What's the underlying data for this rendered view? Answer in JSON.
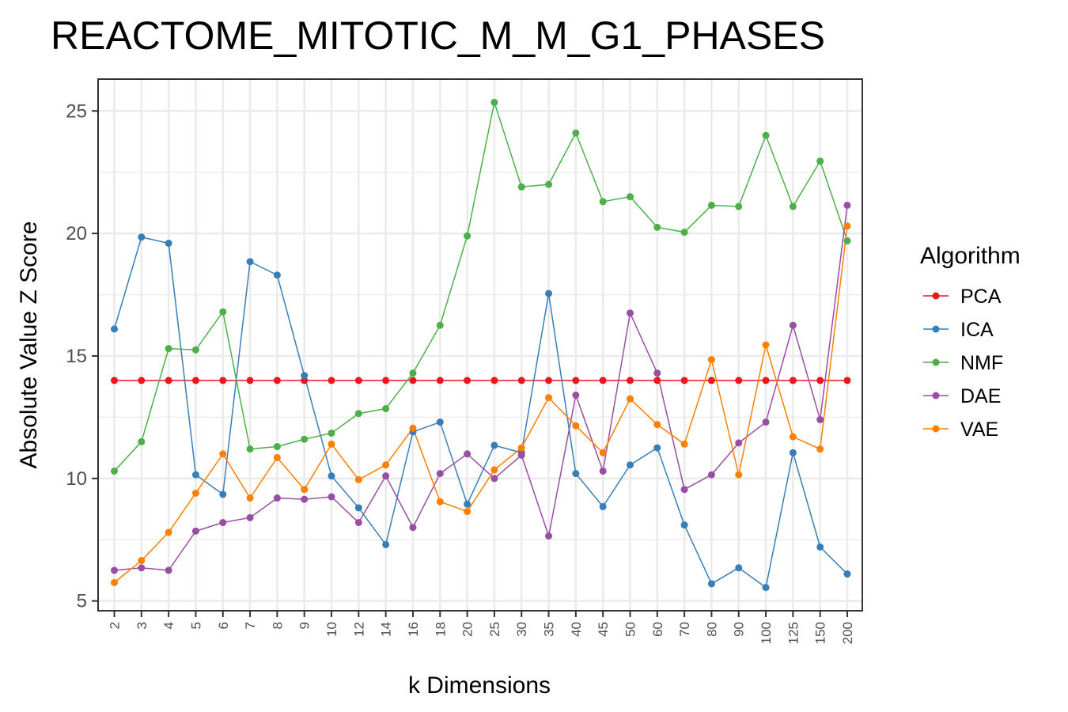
{
  "chart_data": {
    "type": "line",
    "title": "REACTOME_MITOTIC_M_M_G1_PHASES",
    "xlabel": "k Dimensions",
    "ylabel": "Absolute Value Z Score",
    "categories": [
      "2",
      "3",
      "4",
      "5",
      "6",
      "7",
      "8",
      "9",
      "10",
      "12",
      "14",
      "16",
      "18",
      "20",
      "25",
      "30",
      "35",
      "40",
      "45",
      "50",
      "60",
      "70",
      "80",
      "90",
      "100",
      "125",
      "150",
      "200"
    ],
    "yticks": [
      5,
      10,
      15,
      20,
      25
    ],
    "ylim": [
      4.6,
      26.3
    ],
    "grid": true,
    "legend": {
      "title": "Algorithm",
      "position": "right"
    },
    "series": [
      {
        "name": "PCA",
        "color": "#e41a1c",
        "values": [
          14,
          14,
          14,
          14,
          14,
          14,
          14,
          14,
          14,
          14,
          14,
          14,
          14,
          14,
          14,
          14,
          14,
          14,
          14,
          14,
          14,
          14,
          14,
          14,
          14,
          14,
          14,
          14
        ]
      },
      {
        "name": "ICA",
        "color": "#377eb8",
        "values": [
          16.1,
          19.85,
          19.6,
          10.15,
          9.35,
          18.85,
          18.3,
          14.2,
          10.1,
          8.8,
          7.3,
          11.9,
          12.3,
          8.95,
          11.35,
          11.05,
          17.55,
          10.2,
          8.85,
          10.55,
          11.25,
          8.1,
          5.7,
          6.35,
          5.55,
          11.05,
          7.2,
          6.1
        ]
      },
      {
        "name": "NMF",
        "color": "#4daf4a",
        "values": [
          10.3,
          11.5,
          15.3,
          15.25,
          16.8,
          11.2,
          11.3,
          11.6,
          11.85,
          12.65,
          12.85,
          14.3,
          16.25,
          19.9,
          25.35,
          21.9,
          22.0,
          24.1,
          21.3,
          21.5,
          20.25,
          20.05,
          21.15,
          21.1,
          24.0,
          21.1,
          22.95,
          19.7
        ]
      },
      {
        "name": "DAE",
        "color": "#984ea3",
        "values": [
          6.25,
          6.35,
          6.25,
          7.85,
          8.2,
          8.4,
          9.2,
          9.15,
          9.25,
          8.2,
          10.1,
          8.0,
          10.2,
          11.0,
          10.0,
          10.95,
          7.65,
          13.4,
          10.3,
          16.75,
          14.3,
          9.55,
          10.15,
          11.45,
          12.3,
          16.25,
          12.4,
          21.15
        ]
      },
      {
        "name": "VAE",
        "color": "#ff7f00",
        "values": [
          5.75,
          6.65,
          7.8,
          9.4,
          11.0,
          9.2,
          10.85,
          9.55,
          11.4,
          9.95,
          10.55,
          12.05,
          9.05,
          8.65,
          10.35,
          11.25,
          13.3,
          12.15,
          11.05,
          13.25,
          12.2,
          11.4,
          14.85,
          10.15,
          15.45,
          11.7,
          11.2,
          20.3
        ]
      }
    ]
  }
}
